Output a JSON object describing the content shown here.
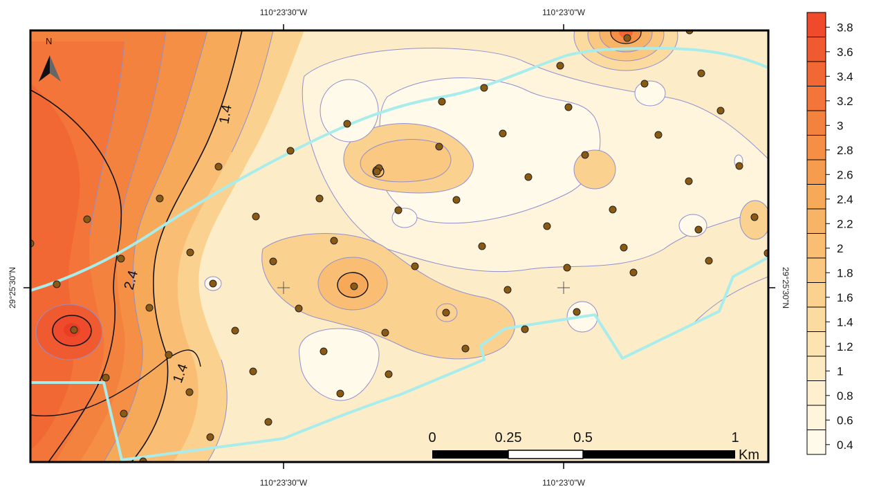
{
  "coordinates": {
    "top": [
      "110°23'30\"W",
      "110°23'0\"W"
    ],
    "bottom": [
      "110°23'30\"W",
      "110°23'0\"W"
    ],
    "left": "29°25'30\"N",
    "right": "29°25'30\"N"
  },
  "north_arrow": {
    "label": "N"
  },
  "contour_labels": [
    "1.4",
    "2.4",
    "1.4"
  ],
  "scale_bar": {
    "ticks": [
      "0",
      "0.25",
      "0.5",
      "1"
    ],
    "unit": "Km"
  },
  "legend": {
    "values": [
      "3.8",
      "3.6",
      "3.4",
      "3.2",
      "3",
      "2.8",
      "2.6",
      "2.4",
      "2.2",
      "2",
      "1.8",
      "1.6",
      "1.4",
      "1.2",
      "1",
      "0.8",
      "0.6",
      "0.4"
    ],
    "colors": [
      "#ee4a2b",
      "#f05a30",
      "#f26835",
      "#f3753a",
      "#f4823f",
      "#f58f46",
      "#f69c4f",
      "#f7a95a",
      "#f8b466",
      "#f9be73",
      "#fac881",
      "#fbd190",
      "#fcdba0",
      "#fde3b0",
      "#fdeac0",
      "#fef0ce",
      "#fef5dc",
      "#fffae9"
    ]
  },
  "colors": {
    "contour": "#8f8fd0",
    "major_contour": "#111111",
    "boundary": "#a8ecec",
    "well": "#8b5a12",
    "background": "#fdecc8"
  }
}
